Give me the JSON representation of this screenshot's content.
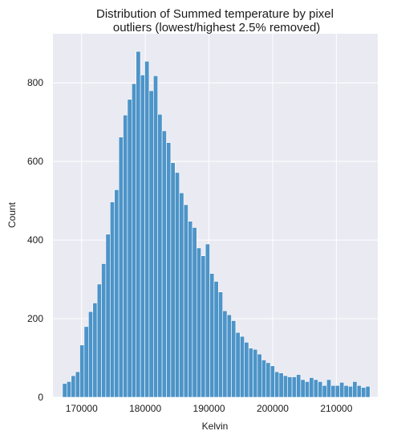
{
  "chart_data": {
    "type": "bar",
    "title_line1": "Distribution of Summed temperature by pixel",
    "title_line2": " outliers (lowest/highest 2.5% removed)",
    "xlabel": "Kelvin",
    "ylabel": "Count",
    "xlim": [
      165500,
      216500
    ],
    "ylim": [
      0,
      925
    ],
    "xticks": [
      170000,
      180000,
      190000,
      200000,
      210000
    ],
    "xtick_labels": [
      "170000",
      "180000",
      "190000",
      "200000",
      "210000"
    ],
    "yticks": [
      0,
      200,
      400,
      600,
      800
    ],
    "ytick_labels": [
      "0",
      "200",
      "400",
      "600",
      "800"
    ],
    "grid": true,
    "bin_start": 167000,
    "bin_width": 680,
    "values": [
      35,
      40,
      55,
      65,
      133,
      180,
      218,
      240,
      288,
      340,
      415,
      497,
      528,
      662,
      718,
      758,
      798,
      880,
      820,
      855,
      780,
      818,
      720,
      678,
      648,
      597,
      572,
      520,
      490,
      448,
      432,
      380,
      360,
      390,
      315,
      295,
      268,
      220,
      210,
      195,
      165,
      155,
      140,
      125,
      122,
      110,
      95,
      88,
      80,
      65,
      62,
      55,
      52,
      52,
      58,
      45,
      40,
      50,
      45,
      40,
      30,
      45,
      30,
      30,
      38,
      30,
      28,
      40,
      30,
      25,
      28
    ],
    "colors": {
      "background": "#eaeaf2",
      "bar_fill": "#4d94c8",
      "bar_edge": "#ffffff",
      "grid": "#ffffff"
    }
  }
}
